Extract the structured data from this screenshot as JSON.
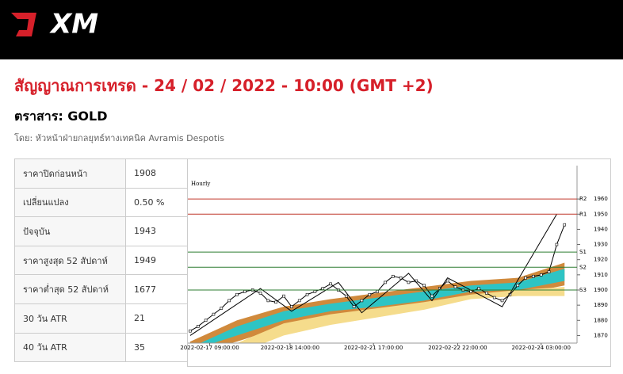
{
  "header": {
    "logo": "XM"
  },
  "title": "สัญญาณการเทรด - 24 / 02 / 2022 - 10:00 (GMT +2)",
  "instrument": "ตราสาร: GOLD",
  "author": "โดย: หัวหน้าฝ่ายกลยุทธ์ทางเทคนิค Avramis Despotis",
  "table": {
    "rows": [
      [
        "ราคาปิดก่อนหน้า",
        "1908"
      ],
      [
        "เปลี่ยนแปลง",
        "0.50 %"
      ],
      [
        "ปัจจุบัน",
        "1943"
      ],
      [
        "ราคาสูงสุด 52 สัปดาห์",
        "1949"
      ],
      [
        "ราคาต่ำสุด 52 สัปดาห์",
        "1677"
      ],
      [
        "30 วัน ATR",
        "21"
      ],
      [
        "40 วัน ATR",
        "35"
      ]
    ]
  },
  "chart_data": {
    "type": "line",
    "subtitle": "Hourly",
    "xlim": [
      -0.3,
      49.6
    ],
    "ylim": [
      1865,
      1982
    ],
    "xticks": [
      {
        "value": 2.5,
        "label": "2022-02-17 09:00:00"
      },
      {
        "value": 12.8,
        "label": "2022-02-18 14:00:00"
      },
      {
        "value": 23.5,
        "label": "2022-02-21 17:00:00"
      },
      {
        "value": 34.3,
        "label": "2022-02-22 22:00:00"
      },
      {
        "value": 45,
        "label": "2022-02-24 03:00:00"
      }
    ],
    "yticks": [
      1870,
      1880,
      1890,
      1900,
      1910,
      1920,
      1930,
      1940,
      1950,
      1960
    ],
    "series": [
      {
        "color": "#000000",
        "values": [
          1873,
          1876,
          1880,
          1884,
          1888,
          1893,
          1897,
          1899,
          1900,
          1898,
          1893,
          1892,
          1896,
          1889,
          1893,
          1897,
          1899,
          1901,
          1904,
          1900,
          1896,
          1889,
          1893,
          1897,
          1899,
          1905,
          1909,
          1908,
          1905,
          1906,
          1903,
          1896,
          1901,
          1906,
          1902,
          1900,
          1899,
          1901,
          1898,
          1895,
          1893,
          1897,
          1903,
          1908,
          1909,
          1910,
          1912,
          1930,
          1943
        ]
      }
    ],
    "zigzag": {
      "x": [
        0,
        9,
        13,
        19,
        22,
        28,
        31,
        33,
        40,
        47
      ],
      "values": [
        1870,
        1901,
        1886,
        1905,
        1885,
        1911,
        1893,
        1908,
        1889,
        1950
      ]
    },
    "bands": {
      "x": [
        0,
        6,
        12,
        18,
        24,
        30,
        36,
        42,
        48
      ],
      "items": [
        {
          "color": "#d08a3c",
          "upper": [
            1866,
            1880,
            1889,
            1894,
            1898,
            1902,
            1906,
            1908,
            1918
          ],
          "lower": [
            1858,
            1866,
            1876,
            1882,
            1885,
            1889,
            1895,
            1897,
            1903
          ]
        },
        {
          "color": "#f5dc8c",
          "upper": [
            1855,
            1865,
            1878,
            1884,
            1888,
            1892,
            1897,
            1900,
            1902
          ],
          "lower": [
            1848,
            1858,
            1870,
            1877,
            1882,
            1887,
            1894,
            1896,
            1896
          ]
        },
        {
          "color": "#2ec4c4",
          "upper": [
            1862,
            1876,
            1886,
            1891,
            1895,
            1899,
            1903,
            1905,
            1914
          ],
          "lower": [
            1860,
            1870,
            1880,
            1886,
            1889,
            1893,
            1899,
            1900,
            1906
          ]
        }
      ]
    },
    "levels": [
      {
        "label": "R2",
        "value": 1960,
        "color": "#c0392b"
      },
      {
        "label": "R1",
        "value": 1950,
        "color": "#c0392b"
      },
      {
        "label": "S1",
        "value": 1925,
        "color": "#2e7d32"
      },
      {
        "label": "S2",
        "value": 1915,
        "color": "#2e7d32"
      },
      {
        "label": "S3",
        "value": 1900,
        "color": "#2e7d32"
      }
    ]
  }
}
